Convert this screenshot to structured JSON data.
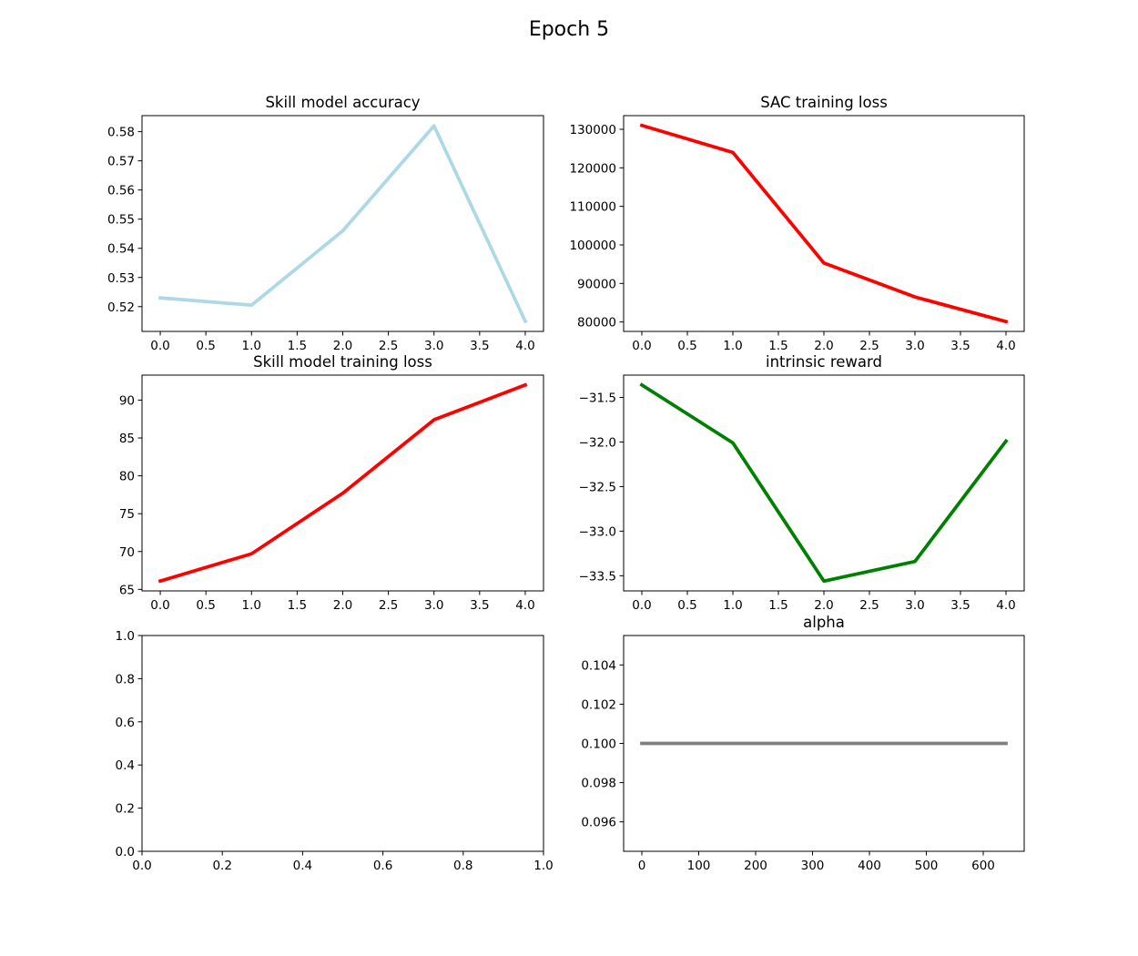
{
  "figure": {
    "title": "Epoch 5"
  },
  "chart_data": [
    {
      "type": "line",
      "title": "Skill model accuracy",
      "xlabel": "",
      "ylabel": "",
      "x": [
        0,
        1,
        2,
        3,
        4
      ],
      "series": [
        {
          "values": [
            0.523,
            0.5205,
            0.546,
            0.582,
            0.515
          ],
          "color": "#add8e6"
        }
      ],
      "xlim": [
        -0.2,
        4.2
      ],
      "ylim": [
        0.5115,
        0.5855
      ],
      "xticks": [
        0.0,
        0.5,
        1.0,
        1.5,
        2.0,
        2.5,
        3.0,
        3.5,
        4.0
      ],
      "xtick_labels": [
        "0.0",
        "0.5",
        "1.0",
        "1.5",
        "2.0",
        "2.5",
        "3.0",
        "3.5",
        "4.0"
      ],
      "yticks": [
        0.52,
        0.53,
        0.54,
        0.55,
        0.56,
        0.57,
        0.58
      ],
      "ytick_labels": [
        "0.52",
        "0.53",
        "0.54",
        "0.55",
        "0.56",
        "0.57",
        "0.58"
      ],
      "grid": false
    },
    {
      "type": "line",
      "title": "SAC training loss",
      "xlabel": "",
      "ylabel": "",
      "x": [
        0,
        1,
        2,
        3,
        4
      ],
      "series": [
        {
          "values": [
            131000,
            124000,
            95300,
            86500,
            80100
          ],
          "color": "#ff0000"
        }
      ],
      "xlim": [
        -0.2,
        4.2
      ],
      "ylim": [
        77555,
        133545
      ],
      "xticks": [
        0.0,
        0.5,
        1.0,
        1.5,
        2.0,
        2.5,
        3.0,
        3.5,
        4.0
      ],
      "xtick_labels": [
        "0.0",
        "0.5",
        "1.0",
        "1.5",
        "2.0",
        "2.5",
        "3.0",
        "3.5",
        "4.0"
      ],
      "yticks": [
        80000,
        90000,
        100000,
        110000,
        120000,
        130000
      ],
      "ytick_labels": [
        "80000",
        "90000",
        "100000",
        "110000",
        "120000",
        "130000"
      ],
      "grid": false
    },
    {
      "type": "line",
      "title": "Skill model training loss",
      "xlabel": "",
      "ylabel": "",
      "x": [
        0,
        1,
        2,
        3,
        4
      ],
      "series": [
        {
          "values": [
            66.1,
            69.7,
            77.7,
            87.4,
            92.0
          ],
          "color": "#ff0000"
        }
      ],
      "xlim": [
        -0.2,
        4.2
      ],
      "ylim": [
        64.8,
        93.3
      ],
      "xticks": [
        0.0,
        0.5,
        1.0,
        1.5,
        2.0,
        2.5,
        3.0,
        3.5,
        4.0
      ],
      "xtick_labels": [
        "0.0",
        "0.5",
        "1.0",
        "1.5",
        "2.0",
        "2.5",
        "3.0",
        "3.5",
        "4.0"
      ],
      "yticks": [
        65,
        70,
        75,
        80,
        85,
        90
      ],
      "ytick_labels": [
        "65",
        "70",
        "75",
        "80",
        "85",
        "90"
      ],
      "grid": false
    },
    {
      "type": "line",
      "title": "intrinsic reward",
      "xlabel": "",
      "ylabel": "",
      "x": [
        0,
        1,
        2,
        3,
        4
      ],
      "series": [
        {
          "values": [
            -31.36,
            -32.01,
            -33.56,
            -33.34,
            -31.99
          ],
          "color": "#008000"
        }
      ],
      "xlim": [
        -0.2,
        4.2
      ],
      "ylim": [
        -33.67,
        -31.25
      ],
      "xticks": [
        0.0,
        0.5,
        1.0,
        1.5,
        2.0,
        2.5,
        3.0,
        3.5,
        4.0
      ],
      "xtick_labels": [
        "0.0",
        "0.5",
        "1.0",
        "1.5",
        "2.0",
        "2.5",
        "3.0",
        "3.5",
        "4.0"
      ],
      "yticks": [
        -33.5,
        -33.0,
        -32.5,
        -32.0,
        -31.5
      ],
      "ytick_labels": [
        "−33.5",
        "−33.0",
        "−32.5",
        "−32.0",
        "−31.5"
      ],
      "grid": false
    },
    {
      "type": "line",
      "title": "",
      "xlabel": "",
      "ylabel": "",
      "x": [],
      "series": [],
      "xlim": [
        0.0,
        1.0
      ],
      "ylim": [
        0.0,
        1.0
      ],
      "xticks": [
        0.0,
        0.2,
        0.4,
        0.6,
        0.8,
        1.0
      ],
      "xtick_labels": [
        "0.0",
        "0.2",
        "0.4",
        "0.6",
        "0.8",
        "1.0"
      ],
      "yticks": [
        0.0,
        0.2,
        0.4,
        0.6,
        0.8,
        1.0
      ],
      "ytick_labels": [
        "0.0",
        "0.2",
        "0.4",
        "0.6",
        "0.8",
        "1.0"
      ],
      "grid": false
    },
    {
      "type": "line",
      "title": "alpha",
      "xlabel": "",
      "ylabel": "",
      "x": [
        0,
        640
      ],
      "series": [
        {
          "values": [
            0.1,
            0.1
          ],
          "color": "#808080"
        }
      ],
      "xlim": [
        -32,
        672
      ],
      "ylim": [
        0.0945,
        0.1055
      ],
      "xticks": [
        0,
        100,
        200,
        300,
        400,
        500,
        600
      ],
      "xtick_labels": [
        "0",
        "100",
        "200",
        "300",
        "400",
        "500",
        "600"
      ],
      "yticks": [
        0.096,
        0.098,
        0.1,
        0.102,
        0.104
      ],
      "ytick_labels": [
        "0.096",
        "0.098",
        "0.100",
        "0.102",
        "0.104"
      ],
      "grid": false
    }
  ]
}
